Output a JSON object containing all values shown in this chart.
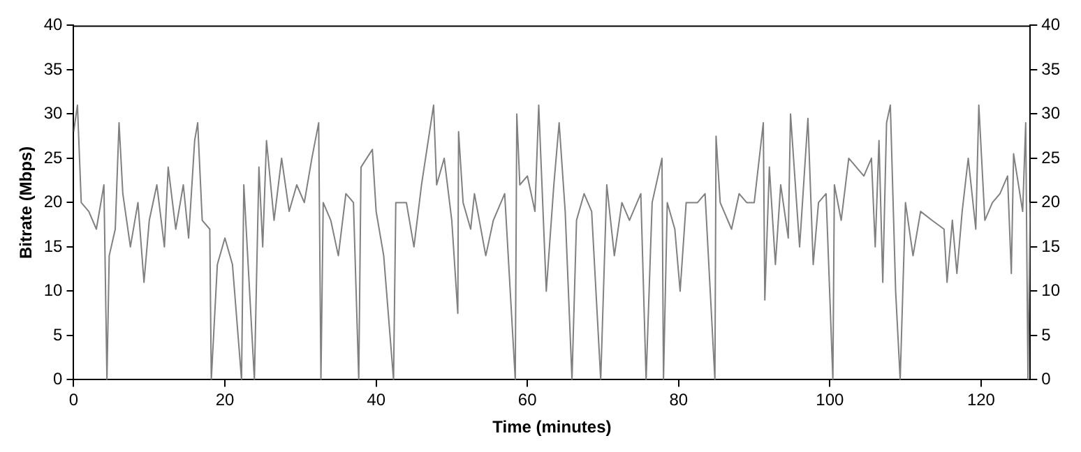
{
  "chart_data": {
    "type": "line",
    "xlabel": "Time (minutes)",
    "ylabel": "Bitrate (Mbps)",
    "xlim": [
      0,
      126.5
    ],
    "xticks": [
      0,
      20,
      40,
      60,
      80,
      100,
      120
    ],
    "ylim": [
      0,
      40
    ],
    "yticks": [
      0,
      5,
      10,
      15,
      20,
      25,
      30,
      35,
      40
    ],
    "y2lim": [
      0,
      40
    ],
    "y2ticks": [
      0,
      5,
      10,
      15,
      20,
      25,
      30,
      35,
      40
    ],
    "grid": false,
    "marker": "none",
    "line_style": "solid",
    "series": [
      {
        "color": "#808080",
        "x": [
          0,
          0.5,
          1,
          2,
          3,
          4,
          4.4,
          4.7,
          5.5,
          6,
          6.5,
          7.5,
          8.5,
          9.3,
          10,
          11,
          12,
          12.5,
          13.5,
          14.5,
          15.2,
          16,
          16.4,
          17,
          18,
          18.2,
          19,
          20,
          21,
          22.2,
          22.5,
          23.9,
          24.5,
          25,
          25.5,
          26.5,
          27.5,
          28.5,
          29.5,
          30.5,
          31.5,
          32.4,
          32.7,
          33,
          34,
          35,
          36,
          37,
          37.7,
          38,
          39.5,
          40,
          41,
          42.3,
          42.6,
          44,
          45,
          46,
          47.6,
          48,
          49,
          50,
          50.8,
          50.9,
          51.5,
          52.5,
          53,
          54.5,
          55.5,
          57,
          58.4,
          58.6,
          59,
          60,
          61,
          61.5,
          62.5,
          63.5,
          64.2,
          65,
          65.9,
          66.5,
          67.5,
          68.5,
          69.7,
          70.5,
          71.5,
          72.5,
          73.5,
          75,
          75.7,
          76.5,
          77.8,
          78,
          78.5,
          79.5,
          80.2,
          81,
          82.5,
          83.5,
          84.8,
          84.95,
          85.5,
          86,
          87,
          88,
          89,
          90,
          91.2,
          91.4,
          92,
          92.8,
          93.5,
          94.5,
          94.8,
          96,
          97.1,
          97.8,
          98.5,
          99.5,
          100.4,
          100.6,
          101.5,
          102.5,
          103.5,
          104.5,
          105.5,
          106,
          106.5,
          107,
          107.5,
          108,
          108.7,
          109.3,
          110,
          111,
          112,
          113.5,
          115.1,
          115.5,
          116.2,
          116.8,
          117.5,
          118.3,
          119.3,
          119.7,
          120.5,
          121.5,
          122.5,
          123.5,
          124,
          124.3,
          125.5,
          125.9,
          126.2,
          126.5
        ],
        "values": [
          28,
          31,
          20,
          19,
          17,
          22,
          0,
          14,
          17,
          29,
          21,
          15,
          20,
          11,
          18,
          22,
          15,
          24,
          17,
          22,
          16,
          27,
          29,
          18,
          17,
          0,
          13,
          16,
          13,
          0,
          22,
          0,
          24,
          15,
          27,
          18,
          25,
          19,
          22,
          20,
          25,
          29,
          0,
          20,
          18,
          14,
          21,
          20,
          0,
          24,
          26,
          19,
          14,
          0,
          20,
          20,
          15,
          22,
          31,
          22,
          25,
          18,
          7.5,
          28,
          20,
          17,
          21,
          14,
          18,
          21,
          0,
          30,
          22,
          23,
          19,
          31,
          10,
          22,
          29,
          19,
          0,
          18,
          21,
          19,
          0,
          22,
          14,
          20,
          18,
          21,
          0,
          20,
          25,
          0,
          20,
          17,
          10,
          20,
          20,
          21,
          0,
          27.5,
          20,
          19,
          17,
          21,
          20,
          20,
          29,
          9,
          24,
          13,
          22,
          16,
          30,
          15,
          29.5,
          13,
          20,
          21,
          0,
          22,
          18,
          25,
          24,
          23,
          25,
          15,
          27,
          11,
          29,
          31,
          10,
          0,
          20,
          14,
          19,
          18,
          17,
          11,
          18,
          12,
          19,
          25,
          17,
          31,
          18,
          20,
          21,
          23,
          12,
          25.5,
          19,
          29,
          0,
          20
        ]
      }
    ]
  }
}
